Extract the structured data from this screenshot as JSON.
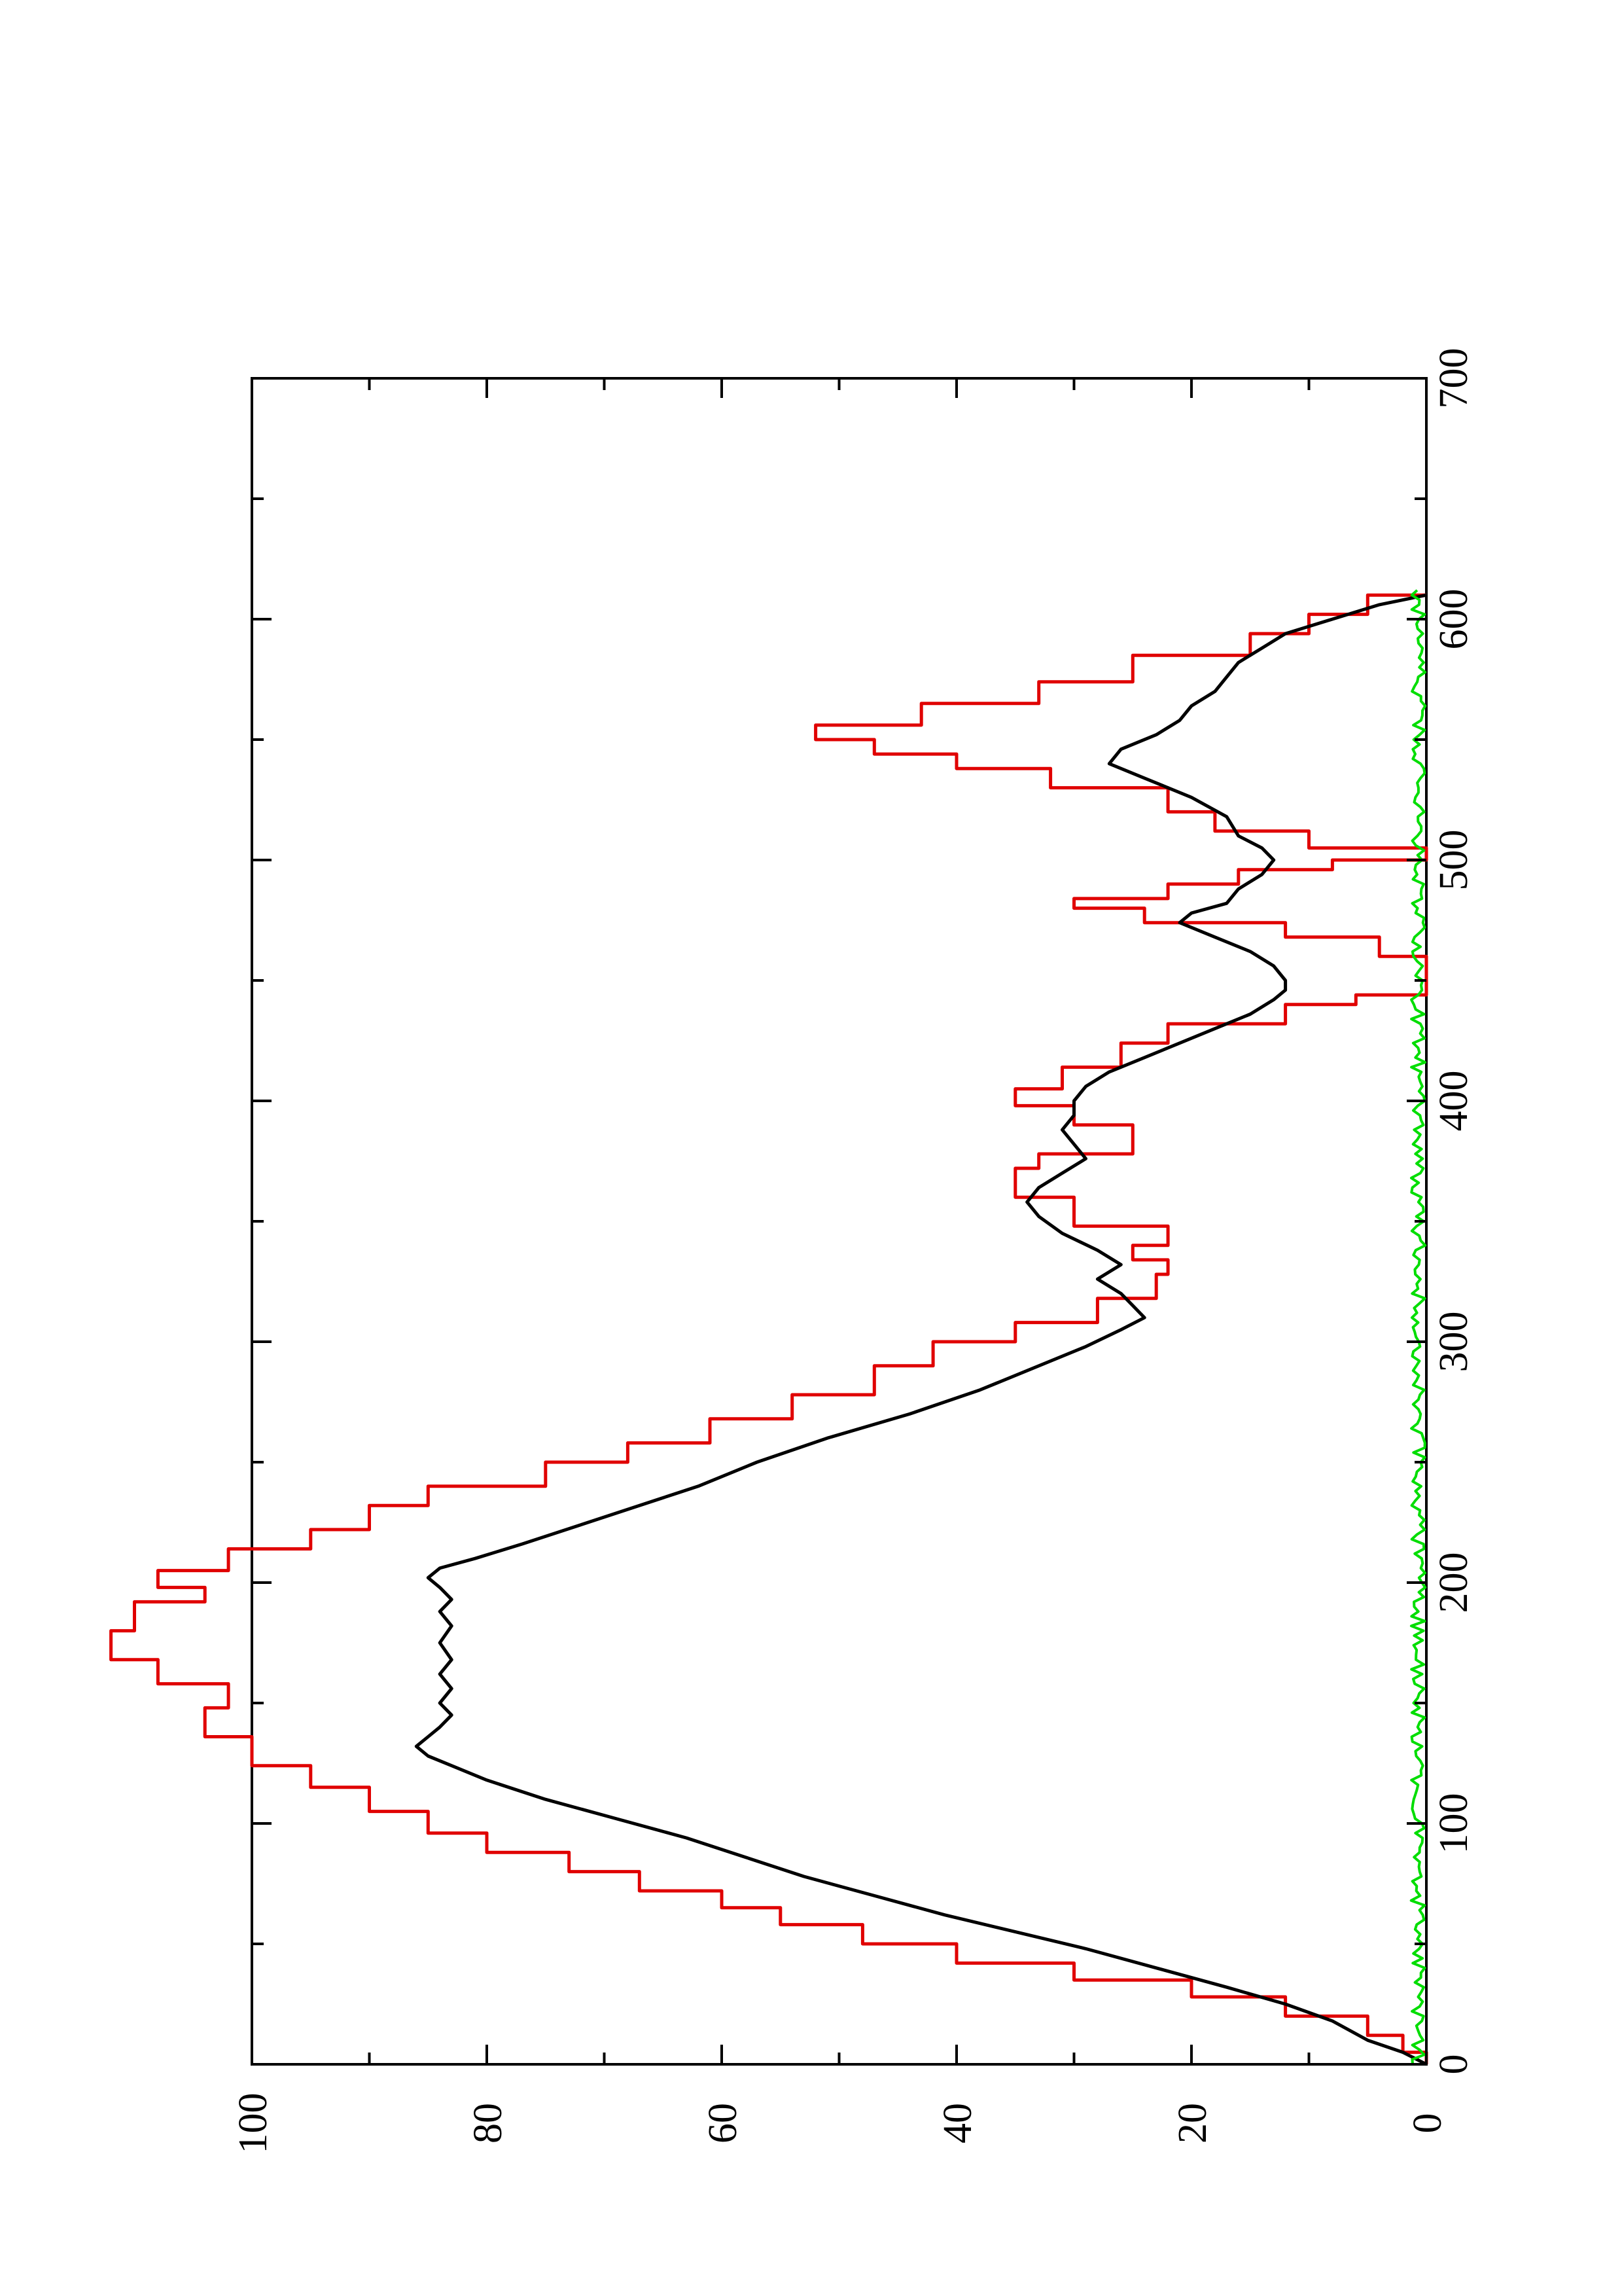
{
  "chart_data": {
    "type": "line",
    "orientation": "rotated-90-ccw",
    "title": "",
    "xlabel": "",
    "ylabel": "",
    "xlim": [
      0,
      700
    ],
    "ylim": [
      0,
      100
    ],
    "x_ticks": [
      "0",
      "100",
      "200",
      "300",
      "400",
      "500",
      "600",
      "700"
    ],
    "y_ticks": [
      "0",
      "20",
      "40",
      "60",
      "80",
      "100"
    ],
    "x_minor_step": 50,
    "y_minor_step": 10,
    "grid": false,
    "legend": "none",
    "series": [
      {
        "color": "#e00000",
        "style": "step",
        "points": [
          [
            0,
            0
          ],
          [
            5,
            2
          ],
          [
            12,
            5
          ],
          [
            20,
            12
          ],
          [
            28,
            20
          ],
          [
            35,
            30
          ],
          [
            42,
            40
          ],
          [
            50,
            48
          ],
          [
            58,
            55
          ],
          [
            65,
            60
          ],
          [
            72,
            67
          ],
          [
            80,
            73
          ],
          [
            88,
            80
          ],
          [
            96,
            85
          ],
          [
            105,
            90
          ],
          [
            115,
            95
          ],
          [
            124,
            100
          ],
          [
            136,
            104
          ],
          [
            148,
            102
          ],
          [
            158,
            108
          ],
          [
            168,
            112
          ],
          [
            180,
            110
          ],
          [
            192,
            104
          ],
          [
            198,
            108
          ],
          [
            205,
            102
          ],
          [
            214,
            95
          ],
          [
            222,
            90
          ],
          [
            232,
            85
          ],
          [
            240,
            75
          ],
          [
            250,
            68
          ],
          [
            258,
            61
          ],
          [
            268,
            54
          ],
          [
            278,
            47
          ],
          [
            290,
            42
          ],
          [
            300,
            35
          ],
          [
            308,
            28
          ],
          [
            318,
            23
          ],
          [
            328,
            22
          ],
          [
            334,
            25
          ],
          [
            340,
            22
          ],
          [
            348,
            30
          ],
          [
            360,
            35
          ],
          [
            372,
            33
          ],
          [
            378,
            25
          ],
          [
            390,
            30
          ],
          [
            398,
            35
          ],
          [
            405,
            31
          ],
          [
            414,
            26
          ],
          [
            424,
            22
          ],
          [
            432,
            12
          ],
          [
            440,
            6
          ],
          [
            444,
            0
          ],
          [
            450,
            0
          ],
          [
            460,
            4
          ],
          [
            468,
            12
          ],
          [
            474,
            24
          ],
          [
            480,
            30
          ],
          [
            484,
            22
          ],
          [
            490,
            16
          ],
          [
            496,
            8
          ],
          [
            500,
            0
          ],
          [
            505,
            10
          ],
          [
            512,
            18
          ],
          [
            520,
            22
          ],
          [
            530,
            32
          ],
          [
            538,
            40
          ],
          [
            544,
            47
          ],
          [
            550,
            52
          ],
          [
            556,
            43
          ],
          [
            565,
            33
          ],
          [
            574,
            25
          ],
          [
            585,
            15
          ],
          [
            594,
            10
          ],
          [
            602,
            5
          ],
          [
            610,
            0
          ]
        ]
      },
      {
        "color": "#000000",
        "style": "line",
        "points": [
          [
            0,
            0
          ],
          [
            5,
            2
          ],
          [
            10,
            5
          ],
          [
            18,
            8
          ],
          [
            25,
            12
          ],
          [
            32,
            17
          ],
          [
            40,
            23
          ],
          [
            48,
            29
          ],
          [
            55,
            35
          ],
          [
            62,
            41
          ],
          [
            70,
            47
          ],
          [
            78,
            53
          ],
          [
            86,
            58
          ],
          [
            94,
            63
          ],
          [
            102,
            69
          ],
          [
            110,
            75
          ],
          [
            118,
            80
          ],
          [
            124,
            83
          ],
          [
            128,
            85
          ],
          [
            132,
            86
          ],
          [
            136,
            85
          ],
          [
            140,
            84
          ],
          [
            145,
            83
          ],
          [
            150,
            84
          ],
          [
            156,
            83
          ],
          [
            162,
            84
          ],
          [
            168,
            83
          ],
          [
            175,
            84
          ],
          [
            182,
            83
          ],
          [
            188,
            84
          ],
          [
            193,
            83
          ],
          [
            198,
            84
          ],
          [
            202,
            85
          ],
          [
            206,
            84
          ],
          [
            210,
            81
          ],
          [
            216,
            77
          ],
          [
            224,
            72
          ],
          [
            232,
            67
          ],
          [
            240,
            62
          ],
          [
            250,
            57
          ],
          [
            260,
            51
          ],
          [
            270,
            44
          ],
          [
            280,
            38
          ],
          [
            290,
            33
          ],
          [
            298,
            29
          ],
          [
            305,
            26
          ],
          [
            310,
            24
          ],
          [
            315,
            25
          ],
          [
            320,
            26
          ],
          [
            326,
            28
          ],
          [
            332,
            26
          ],
          [
            338,
            28
          ],
          [
            345,
            31
          ],
          [
            352,
            33
          ],
          [
            358,
            34
          ],
          [
            364,
            33
          ],
          [
            370,
            31
          ],
          [
            376,
            29
          ],
          [
            382,
            30
          ],
          [
            388,
            31
          ],
          [
            394,
            30
          ],
          [
            400,
            30
          ],
          [
            406,
            29
          ],
          [
            412,
            27
          ],
          [
            418,
            24
          ],
          [
            424,
            21
          ],
          [
            430,
            18
          ],
          [
            436,
            15
          ],
          [
            442,
            13
          ],
          [
            446,
            12
          ],
          [
            450,
            12
          ],
          [
            456,
            13
          ],
          [
            462,
            15
          ],
          [
            468,
            18
          ],
          [
            474,
            21
          ],
          [
            478,
            20
          ],
          [
            482,
            17
          ],
          [
            488,
            16
          ],
          [
            494,
            14
          ],
          [
            500,
            13
          ],
          [
            505,
            14
          ],
          [
            510,
            16
          ],
          [
            518,
            17
          ],
          [
            526,
            20
          ],
          [
            534,
            24
          ],
          [
            540,
            27
          ],
          [
            546,
            26
          ],
          [
            552,
            23
          ],
          [
            558,
            21
          ],
          [
            564,
            20
          ],
          [
            570,
            18
          ],
          [
            576,
            17
          ],
          [
            582,
            16
          ],
          [
            588,
            14
          ],
          [
            594,
            12
          ],
          [
            600,
            8
          ],
          [
            606,
            4
          ],
          [
            610,
            0
          ]
        ]
      },
      {
        "color": "#00dd00",
        "style": "noise",
        "seed": 17,
        "x_range": [
          0,
          612
        ],
        "step": 2,
        "mean": 0.7,
        "amplitude": 0.6
      }
    ]
  }
}
